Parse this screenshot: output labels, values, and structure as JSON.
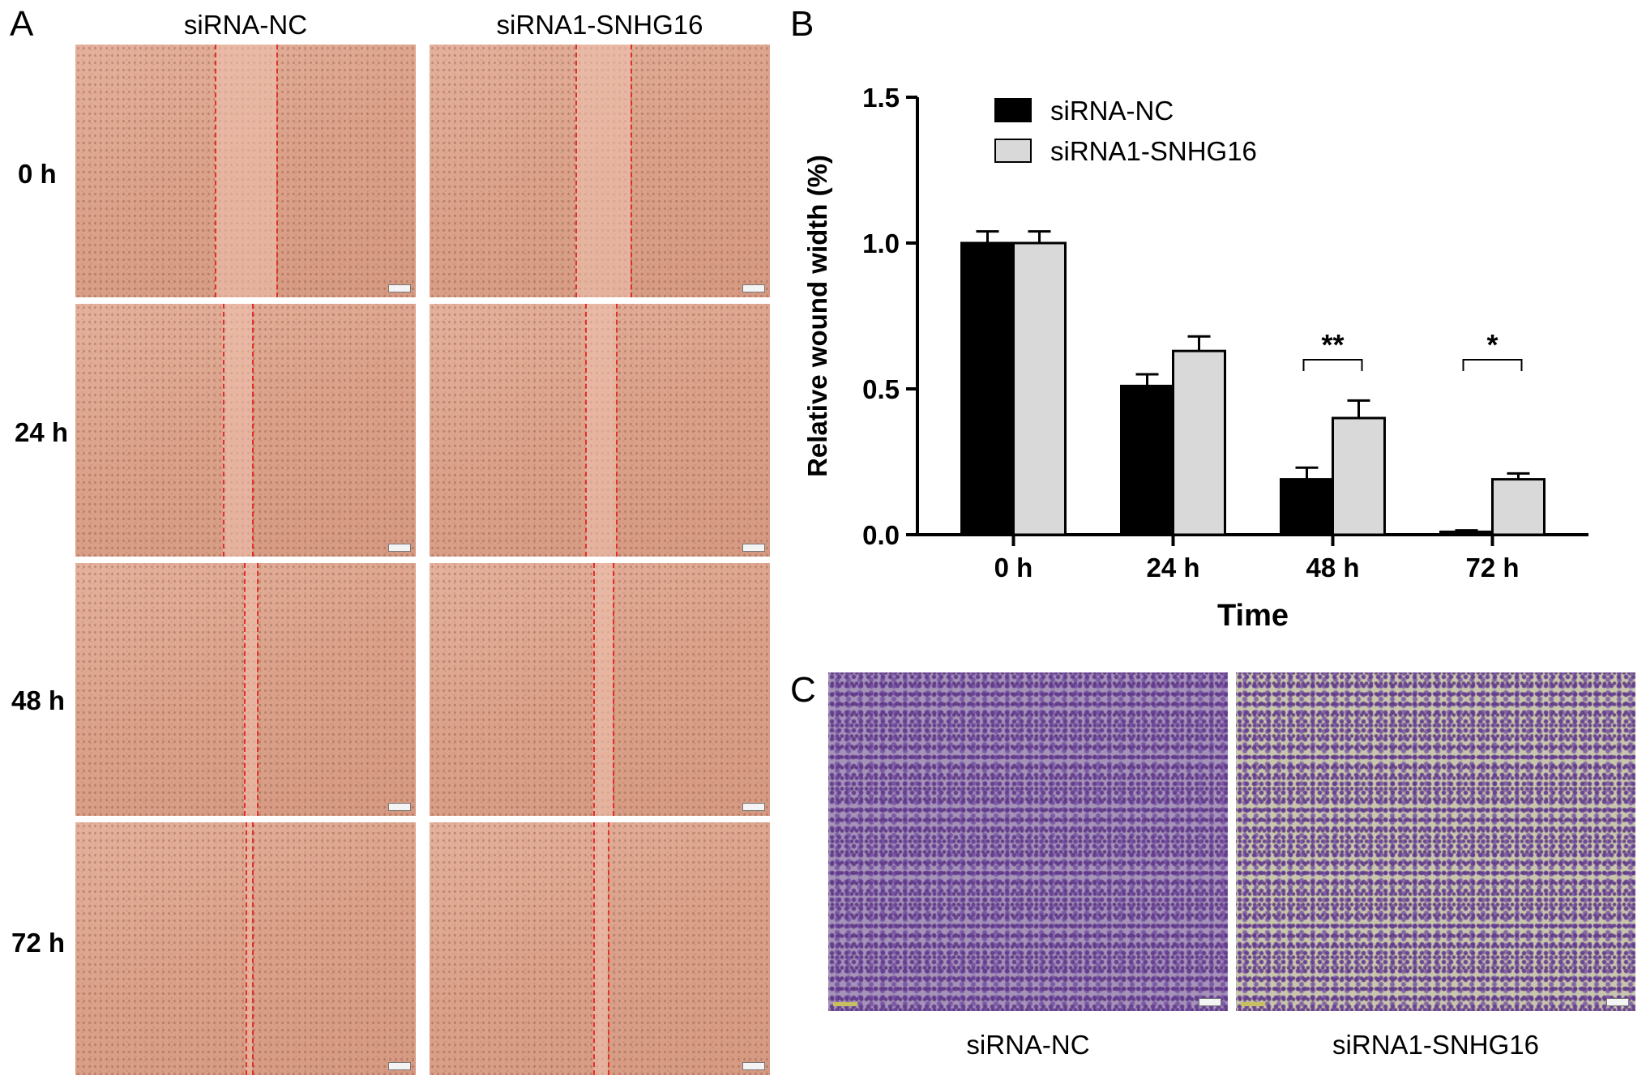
{
  "panelA": {
    "letter": "A",
    "columns": [
      "siRNA-NC",
      "siRNA1-SNHG16"
    ],
    "rows": [
      "0 h",
      "24 h",
      "48 h",
      "72 h"
    ]
  },
  "panelB": {
    "letter": "B"
  },
  "panelC": {
    "letter": "C",
    "labels": [
      "siRNA-NC",
      "siRNA1-SNHG16"
    ]
  },
  "colors": {
    "siRNA-NC": "#000000",
    "siRNA1-SNHG16": "#d9d9d9",
    "wound_line": "#e0302a"
  },
  "chart_data": {
    "type": "bar",
    "title": "",
    "xlabel": "Time",
    "ylabel": "Relative wound width (%)",
    "categories": [
      "0 h",
      "24 h",
      "48 h",
      "72 h"
    ],
    "ylim": [
      0,
      1.5
    ],
    "yticks": [
      "0.0",
      "0.5",
      "1.0",
      "1.5"
    ],
    "series": [
      {
        "name": "siRNA-NC",
        "values": [
          1.0,
          0.51,
          0.19,
          0.01
        ],
        "errors": [
          0.04,
          0.04,
          0.04,
          0.005
        ]
      },
      {
        "name": "siRNA1-SNHG16",
        "values": [
          1.0,
          0.63,
          0.4,
          0.19
        ],
        "errors": [
          0.04,
          0.05,
          0.06,
          0.02
        ]
      }
    ],
    "annotations": [
      {
        "category": "48 h",
        "text": "**"
      },
      {
        "category": "72 h",
        "text": "*"
      }
    ],
    "legend": "top-left",
    "grid": false
  }
}
